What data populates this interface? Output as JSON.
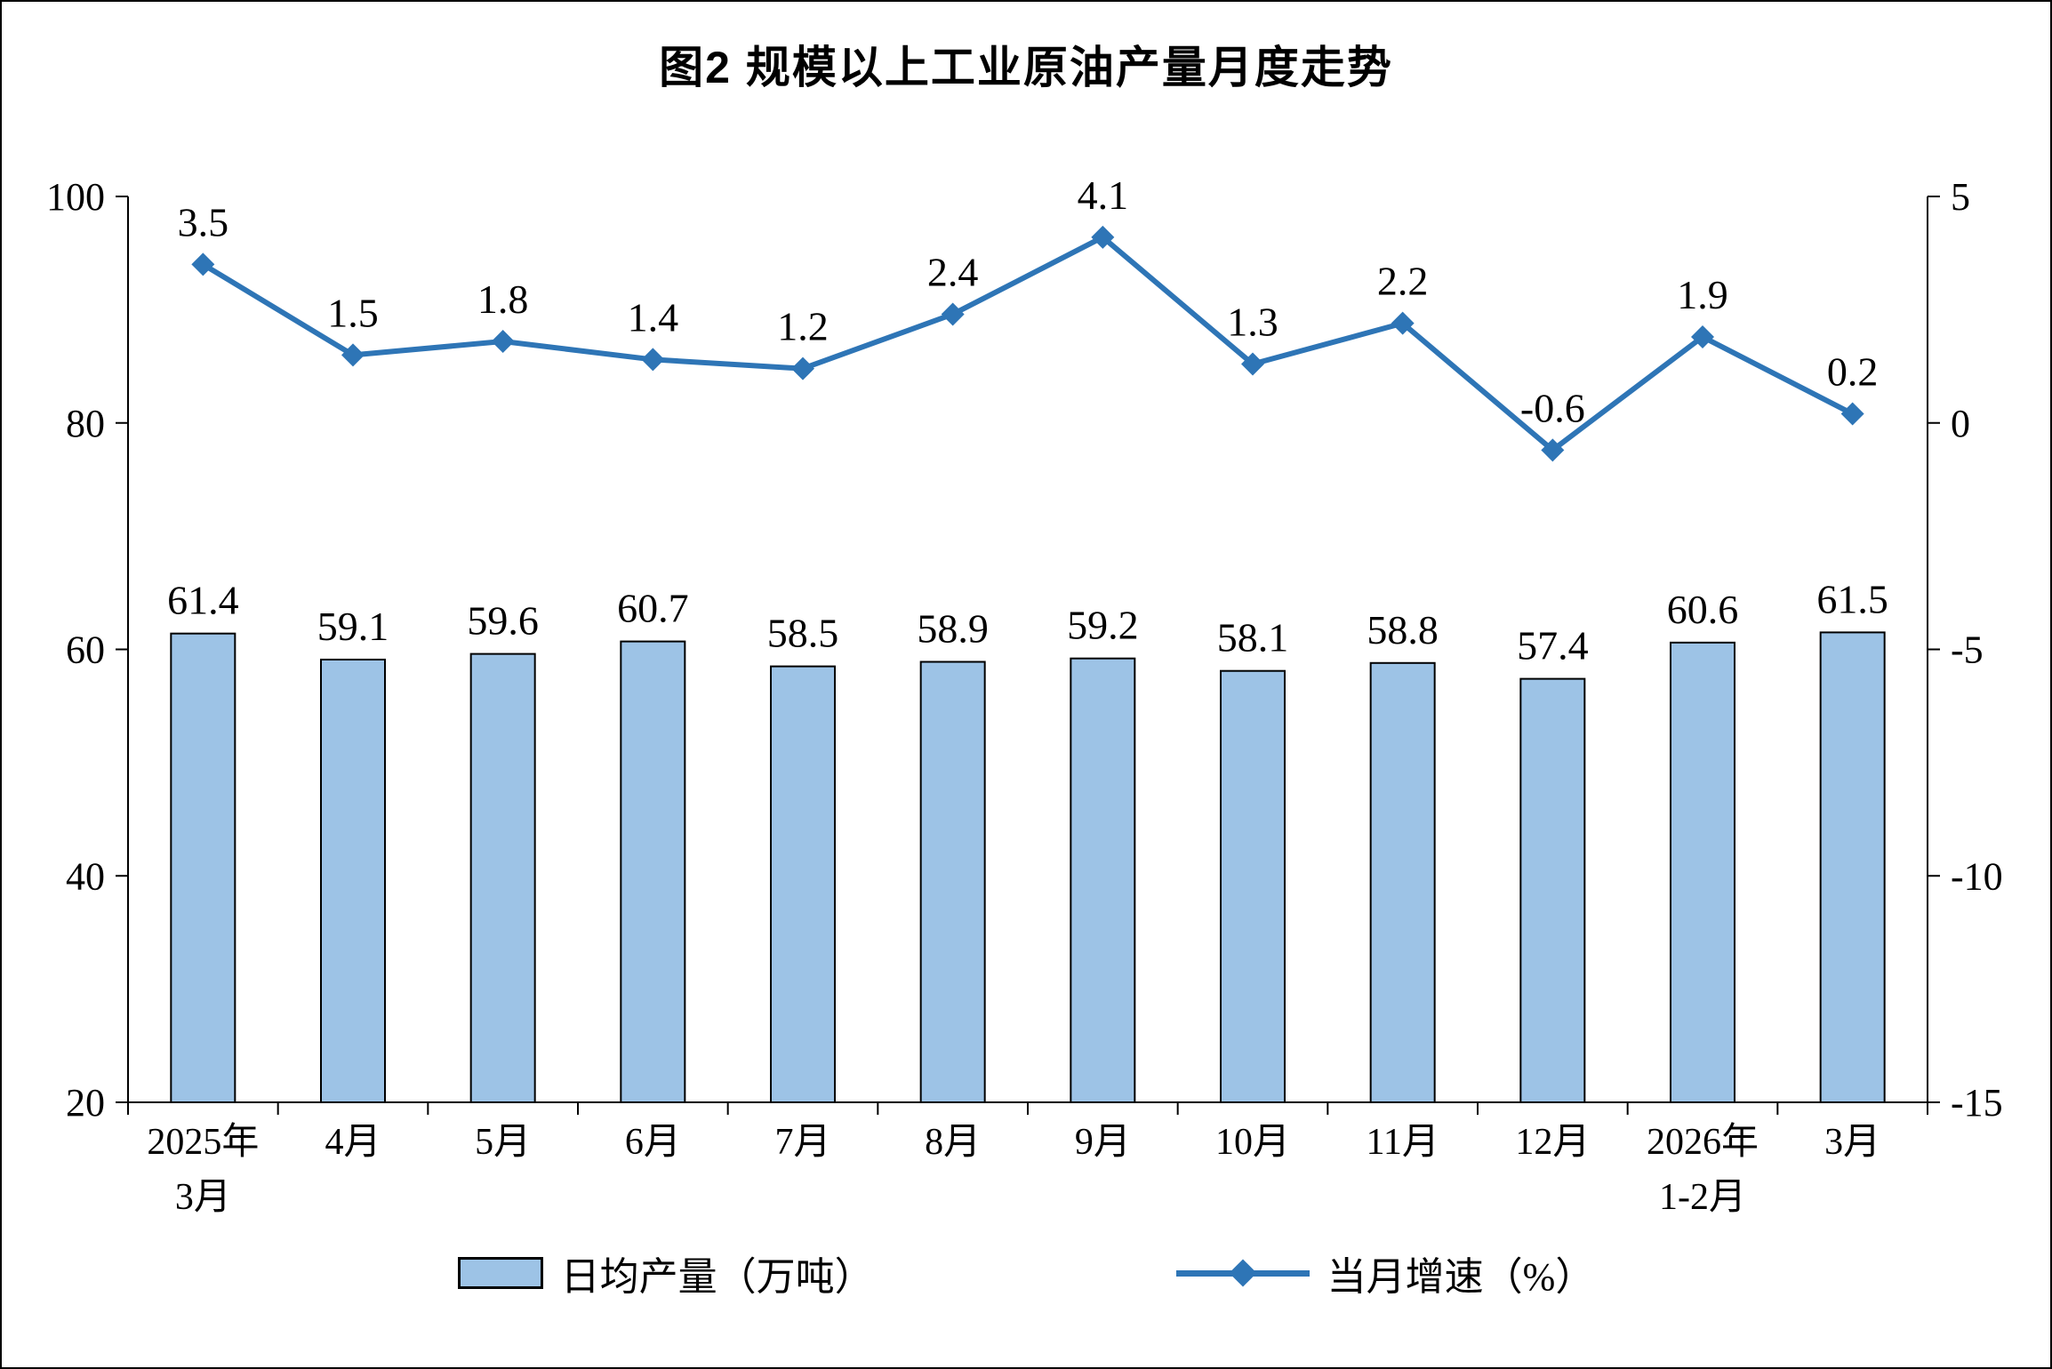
{
  "title": "图2 规模以上工业原油产量月度走势",
  "legend": {
    "bar_label": "日均产量（万吨）",
    "line_label": "当月增速（%）"
  },
  "colors": {
    "bar_fill": "#9DC3E6",
    "bar_stroke": "#000000",
    "line": "#2E75B6",
    "text": "#000000",
    "background": "#FFFFFF"
  },
  "chart_data": {
    "type": "combo",
    "title": "图2 规模以上工业原油产量月度走势",
    "categories": [
      "2025年\n3月",
      "4月",
      "5月",
      "6月",
      "7月",
      "8月",
      "9月",
      "10月",
      "11月",
      "12月",
      "2026年\n1-2月",
      "3月"
    ],
    "series": [
      {
        "name": "日均产量（万吨）",
        "type": "bar",
        "axis": "left",
        "values": [
          61.4,
          59.1,
          59.6,
          60.7,
          58.5,
          58.9,
          59.2,
          58.1,
          58.8,
          57.4,
          60.6,
          61.5
        ]
      },
      {
        "name": "当月增速（%）",
        "type": "line",
        "axis": "right",
        "values": [
          3.5,
          1.5,
          1.8,
          1.4,
          1.2,
          2.4,
          4.1,
          1.3,
          2.2,
          -0.6,
          1.9,
          0.2
        ]
      }
    ],
    "left_axis": {
      "min": 20,
      "max": 100,
      "ticks": [
        20,
        40,
        60,
        80,
        100
      ]
    },
    "right_axis": {
      "min": -15,
      "max": 5,
      "ticks": [
        -15,
        -10,
        -5,
        0,
        5
      ]
    },
    "grid": false,
    "legend_position": "bottom"
  }
}
